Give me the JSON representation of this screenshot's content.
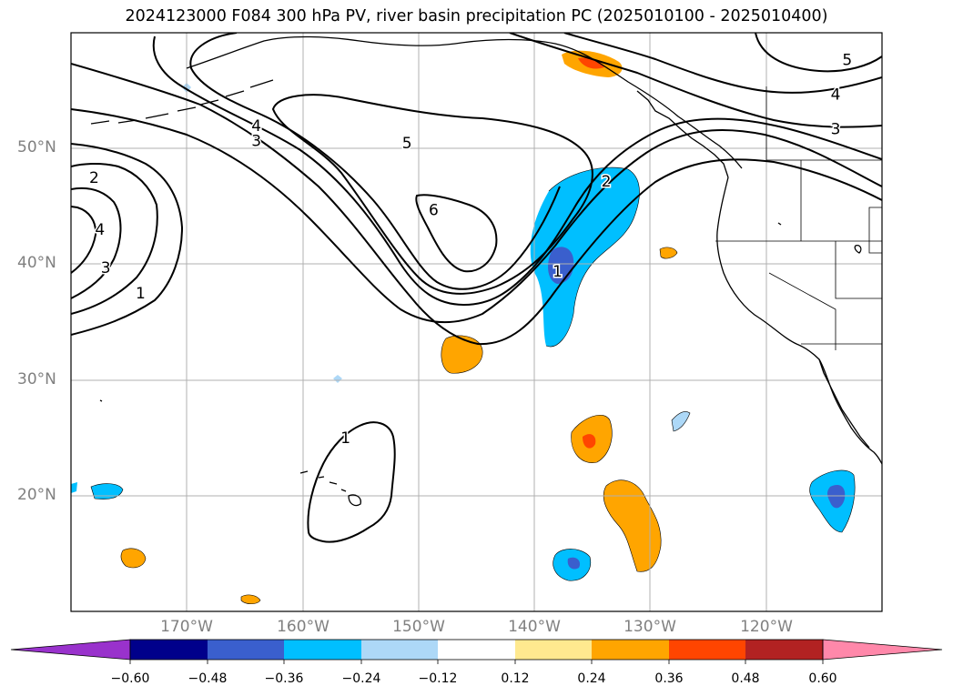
{
  "title": "2024123000 F084 300 hPa PV, river basin precipitation PC (2025010100 - 2025010400)",
  "map": {
    "region": "North Pacific / western North America",
    "projection": "PlateCarree",
    "lon_range": [
      -180,
      -110
    ],
    "lat_range": [
      10,
      60
    ],
    "lat_ticks": [
      {
        "value": 50,
        "label": "50°N"
      },
      {
        "value": 40,
        "label": "40°N"
      },
      {
        "value": 30,
        "label": "30°N"
      },
      {
        "value": 20,
        "label": "20°N"
      }
    ],
    "lon_ticks": [
      {
        "value": -170,
        "label": "170°W"
      },
      {
        "value": -160,
        "label": "160°W"
      },
      {
        "value": -150,
        "label": "150°W"
      },
      {
        "value": -140,
        "label": "140°W"
      },
      {
        "value": -130,
        "label": "130°W"
      },
      {
        "value": -120,
        "label": "120°W"
      }
    ],
    "gridlines": true,
    "pv_contour_labels": [
      {
        "text": "2",
        "lon": -178,
        "lat": 47.5
      },
      {
        "text": "3",
        "lon": -177,
        "lat": 39.7
      },
      {
        "text": "4",
        "lon": -177.5,
        "lat": 43
      },
      {
        "text": "1",
        "lon": -174,
        "lat": 37.5
      },
      {
        "text": "4",
        "lon": -164,
        "lat": 52
      },
      {
        "text": "3",
        "lon": -164,
        "lat": 50.7
      },
      {
        "text": "5",
        "lon": -151,
        "lat": 50.5
      },
      {
        "text": "6",
        "lon": -148.7,
        "lat": 44.7
      },
      {
        "text": "2",
        "lon": -133.8,
        "lat": 47.2
      },
      {
        "text": "1",
        "lon": -138,
        "lat": 39.4
      },
      {
        "text": "1",
        "lon": -156.3,
        "lat": 25
      },
      {
        "text": "5",
        "lon": -113,
        "lat": 57.7
      },
      {
        "text": "4",
        "lon": -114,
        "lat": 54.7
      },
      {
        "text": "3",
        "lon": -114,
        "lat": 51.7
      }
    ]
  },
  "colorbar": {
    "ticks": [
      "−0.60",
      "−0.48",
      "−0.36",
      "−0.24",
      "−0.12",
      "0.12",
      "0.24",
      "0.36",
      "0.48",
      "0.60"
    ],
    "colors": [
      "#9932cc",
      "#00008b",
      "#3a5fcd",
      "#00bfff",
      "#add8f7",
      "#ffffff",
      "#ffe98f",
      "#ffa500",
      "#ff4500",
      "#b22222",
      "#ff88aa"
    ]
  }
}
